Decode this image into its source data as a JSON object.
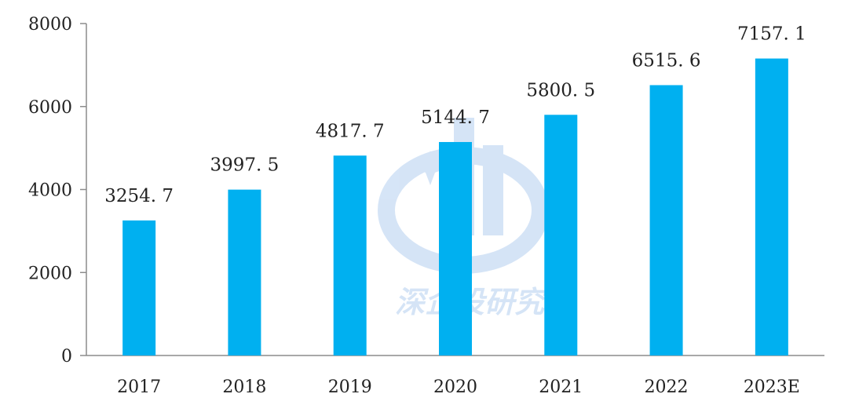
{
  "chart_data": {
    "type": "bar",
    "categories": [
      "2017",
      "2018",
      "2019",
      "2020",
      "2021",
      "2022",
      "2023E"
    ],
    "values": [
      3254.7,
      3997.5,
      4817.7,
      5144.7,
      5800.5,
      6515.6,
      7157.1
    ],
    "value_labels": [
      "3254. 7",
      "3997. 5",
      "4817. 7",
      "5144. 7",
      "5800. 5",
      "6515. 6",
      "7157. 1"
    ],
    "ylim": [
      0,
      8000
    ],
    "yticks": [
      "0",
      "2000",
      "4000",
      "6000",
      "8000"
    ],
    "ytick_values": [
      0,
      2000,
      4000,
      6000,
      8000
    ],
    "grid": false,
    "bar_color": "#00b0f0",
    "watermark_text": "深企投研究"
  }
}
